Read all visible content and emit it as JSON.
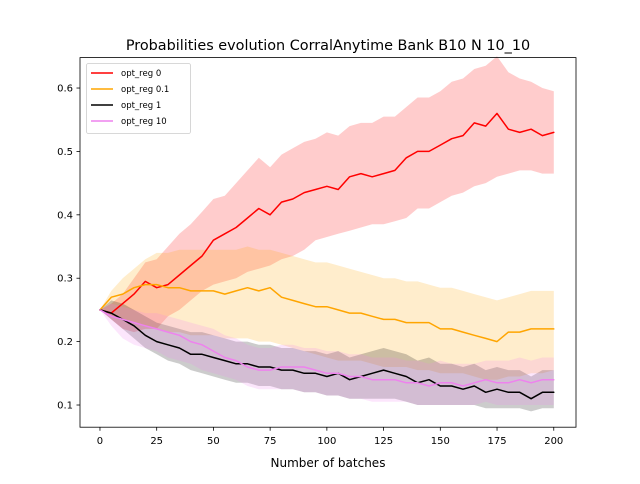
{
  "chart_data": {
    "type": "line",
    "title": "Probabilities evolution CorralAnytime Bank B10 N 10_10",
    "xlabel": "Number of batches",
    "ylabel": "",
    "xlim": [
      -8.8,
      209.8
    ],
    "ylim": [
      0.065,
      0.648
    ],
    "xticks": [
      0,
      25,
      50,
      75,
      100,
      125,
      150,
      175,
      200
    ],
    "yticks": [
      0.1,
      0.2,
      0.3,
      0.4,
      0.5,
      0.6
    ],
    "ytick_labels": [
      "0.1",
      "0.2",
      "0.3",
      "0.4",
      "0.5",
      "0.6"
    ],
    "grid": false,
    "legend_position": "top-left",
    "series": [
      {
        "name": "opt_reg 0",
        "color": "#ff0000",
        "band_color": "#ff0000",
        "x": [
          0,
          5,
          10,
          15,
          20,
          25,
          30,
          35,
          40,
          45,
          50,
          55,
          60,
          65,
          70,
          75,
          80,
          85,
          90,
          95,
          100,
          105,
          110,
          115,
          120,
          125,
          130,
          135,
          140,
          145,
          150,
          155,
          160,
          165,
          170,
          175,
          180,
          185,
          190,
          195,
          200
        ],
        "values": [
          0.25,
          0.245,
          0.26,
          0.275,
          0.295,
          0.285,
          0.29,
          0.305,
          0.32,
          0.335,
          0.36,
          0.37,
          0.38,
          0.395,
          0.41,
          0.4,
          0.42,
          0.425,
          0.435,
          0.44,
          0.445,
          0.44,
          0.46,
          0.465,
          0.46,
          0.465,
          0.47,
          0.49,
          0.5,
          0.5,
          0.51,
          0.52,
          0.525,
          0.545,
          0.54,
          0.56,
          0.535,
          0.53,
          0.535,
          0.525,
          0.53
        ],
        "lower": [
          0.25,
          0.235,
          0.22,
          0.215,
          0.22,
          0.22,
          0.24,
          0.25,
          0.265,
          0.28,
          0.29,
          0.295,
          0.3,
          0.31,
          0.315,
          0.32,
          0.33,
          0.335,
          0.345,
          0.36,
          0.365,
          0.37,
          0.375,
          0.38,
          0.385,
          0.385,
          0.39,
          0.395,
          0.41,
          0.41,
          0.42,
          0.43,
          0.435,
          0.445,
          0.45,
          0.46,
          0.465,
          0.47,
          0.47,
          0.465,
          0.465
        ],
        "upper": [
          0.25,
          0.26,
          0.275,
          0.3,
          0.325,
          0.33,
          0.35,
          0.37,
          0.385,
          0.405,
          0.425,
          0.43,
          0.45,
          0.47,
          0.49,
          0.475,
          0.495,
          0.505,
          0.515,
          0.52,
          0.53,
          0.525,
          0.54,
          0.545,
          0.545,
          0.555,
          0.555,
          0.57,
          0.585,
          0.585,
          0.595,
          0.61,
          0.615,
          0.63,
          0.635,
          0.65,
          0.625,
          0.615,
          0.61,
          0.6,
          0.595
        ]
      },
      {
        "name": "opt_reg 0.1",
        "color": "#ffa500",
        "band_color": "#ffa500",
        "x": [
          0,
          5,
          10,
          15,
          20,
          25,
          30,
          35,
          40,
          45,
          50,
          55,
          60,
          65,
          70,
          75,
          80,
          85,
          90,
          95,
          100,
          105,
          110,
          115,
          120,
          125,
          130,
          135,
          140,
          145,
          150,
          155,
          160,
          165,
          170,
          175,
          180,
          185,
          190,
          195,
          200
        ],
        "values": [
          0.25,
          0.27,
          0.275,
          0.285,
          0.29,
          0.29,
          0.285,
          0.285,
          0.28,
          0.28,
          0.28,
          0.275,
          0.28,
          0.285,
          0.28,
          0.285,
          0.27,
          0.265,
          0.26,
          0.255,
          0.255,
          0.25,
          0.245,
          0.245,
          0.24,
          0.235,
          0.235,
          0.23,
          0.23,
          0.23,
          0.22,
          0.22,
          0.215,
          0.21,
          0.205,
          0.2,
          0.215,
          0.215,
          0.22,
          0.22,
          0.22
        ],
        "lower": [
          0.25,
          0.24,
          0.235,
          0.23,
          0.225,
          0.22,
          0.215,
          0.215,
          0.21,
          0.21,
          0.21,
          0.205,
          0.205,
          0.205,
          0.2,
          0.2,
          0.195,
          0.19,
          0.185,
          0.18,
          0.175,
          0.17,
          0.17,
          0.17,
          0.165,
          0.16,
          0.16,
          0.16,
          0.155,
          0.155,
          0.15,
          0.15,
          0.15,
          0.145,
          0.14,
          0.14,
          0.145,
          0.145,
          0.15,
          0.15,
          0.155
        ],
        "upper": [
          0.25,
          0.28,
          0.3,
          0.315,
          0.33,
          0.34,
          0.34,
          0.345,
          0.345,
          0.345,
          0.345,
          0.345,
          0.345,
          0.35,
          0.345,
          0.345,
          0.34,
          0.335,
          0.33,
          0.325,
          0.325,
          0.32,
          0.315,
          0.31,
          0.305,
          0.3,
          0.3,
          0.295,
          0.295,
          0.29,
          0.285,
          0.285,
          0.28,
          0.275,
          0.27,
          0.265,
          0.27,
          0.275,
          0.28,
          0.28,
          0.28
        ]
      },
      {
        "name": "opt_reg 1",
        "color": "#000000",
        "band_color": "#000000",
        "x": [
          0,
          5,
          10,
          15,
          20,
          25,
          30,
          35,
          40,
          45,
          50,
          55,
          60,
          65,
          70,
          75,
          80,
          85,
          90,
          95,
          100,
          105,
          110,
          115,
          120,
          125,
          130,
          135,
          140,
          145,
          150,
          155,
          160,
          165,
          170,
          175,
          180,
          185,
          190,
          195,
          200
        ],
        "values": [
          0.25,
          0.245,
          0.235,
          0.225,
          0.21,
          0.2,
          0.195,
          0.19,
          0.18,
          0.18,
          0.175,
          0.17,
          0.165,
          0.165,
          0.16,
          0.16,
          0.155,
          0.155,
          0.15,
          0.15,
          0.145,
          0.15,
          0.14,
          0.145,
          0.15,
          0.155,
          0.15,
          0.145,
          0.135,
          0.14,
          0.13,
          0.13,
          0.125,
          0.13,
          0.12,
          0.125,
          0.12,
          0.12,
          0.11,
          0.12,
          0.12
        ],
        "lower": [
          0.25,
          0.235,
          0.22,
          0.205,
          0.19,
          0.18,
          0.17,
          0.165,
          0.155,
          0.15,
          0.145,
          0.14,
          0.135,
          0.135,
          0.13,
          0.13,
          0.125,
          0.125,
          0.12,
          0.12,
          0.115,
          0.115,
          0.11,
          0.11,
          0.11,
          0.11,
          0.11,
          0.105,
          0.1,
          0.1,
          0.1,
          0.1,
          0.1,
          0.1,
          0.095,
          0.095,
          0.095,
          0.095,
          0.09,
          0.095,
          0.095
        ],
        "upper": [
          0.25,
          0.265,
          0.26,
          0.25,
          0.24,
          0.23,
          0.225,
          0.22,
          0.215,
          0.215,
          0.21,
          0.205,
          0.2,
          0.2,
          0.195,
          0.195,
          0.19,
          0.19,
          0.185,
          0.185,
          0.18,
          0.185,
          0.175,
          0.18,
          0.185,
          0.19,
          0.185,
          0.18,
          0.17,
          0.175,
          0.165,
          0.165,
          0.16,
          0.165,
          0.155,
          0.16,
          0.155,
          0.155,
          0.145,
          0.155,
          0.155
        ]
      },
      {
        "name": "opt_reg 10",
        "color": "#ee82ee",
        "band_color": "#ee82ee",
        "x": [
          0,
          5,
          10,
          15,
          20,
          25,
          30,
          35,
          40,
          45,
          50,
          55,
          60,
          65,
          70,
          75,
          80,
          85,
          90,
          95,
          100,
          105,
          110,
          115,
          120,
          125,
          130,
          135,
          140,
          145,
          150,
          155,
          160,
          165,
          170,
          175,
          180,
          185,
          190,
          195,
          200
        ],
        "values": [
          0.25,
          0.24,
          0.235,
          0.23,
          0.225,
          0.22,
          0.215,
          0.21,
          0.2,
          0.195,
          0.185,
          0.175,
          0.17,
          0.16,
          0.155,
          0.155,
          0.16,
          0.16,
          0.16,
          0.155,
          0.15,
          0.15,
          0.145,
          0.145,
          0.14,
          0.14,
          0.14,
          0.135,
          0.135,
          0.13,
          0.135,
          0.135,
          0.13,
          0.135,
          0.14,
          0.135,
          0.135,
          0.14,
          0.135,
          0.14,
          0.14
        ],
        "lower": [
          0.25,
          0.225,
          0.205,
          0.195,
          0.19,
          0.185,
          0.175,
          0.17,
          0.165,
          0.155,
          0.15,
          0.145,
          0.14,
          0.13,
          0.125,
          0.125,
          0.125,
          0.125,
          0.12,
          0.12,
          0.115,
          0.115,
          0.11,
          0.11,
          0.105,
          0.105,
          0.105,
          0.105,
          0.1,
          0.1,
          0.1,
          0.1,
          0.1,
          0.1,
          0.105,
          0.1,
          0.1,
          0.1,
          0.1,
          0.1,
          0.1
        ],
        "upper": [
          0.25,
          0.26,
          0.255,
          0.25,
          0.245,
          0.245,
          0.24,
          0.235,
          0.23,
          0.225,
          0.22,
          0.21,
          0.205,
          0.195,
          0.19,
          0.19,
          0.195,
          0.195,
          0.19,
          0.19,
          0.185,
          0.185,
          0.18,
          0.18,
          0.175,
          0.175,
          0.175,
          0.17,
          0.17,
          0.165,
          0.17,
          0.165,
          0.165,
          0.165,
          0.17,
          0.17,
          0.17,
          0.175,
          0.17,
          0.175,
          0.175
        ]
      }
    ]
  }
}
